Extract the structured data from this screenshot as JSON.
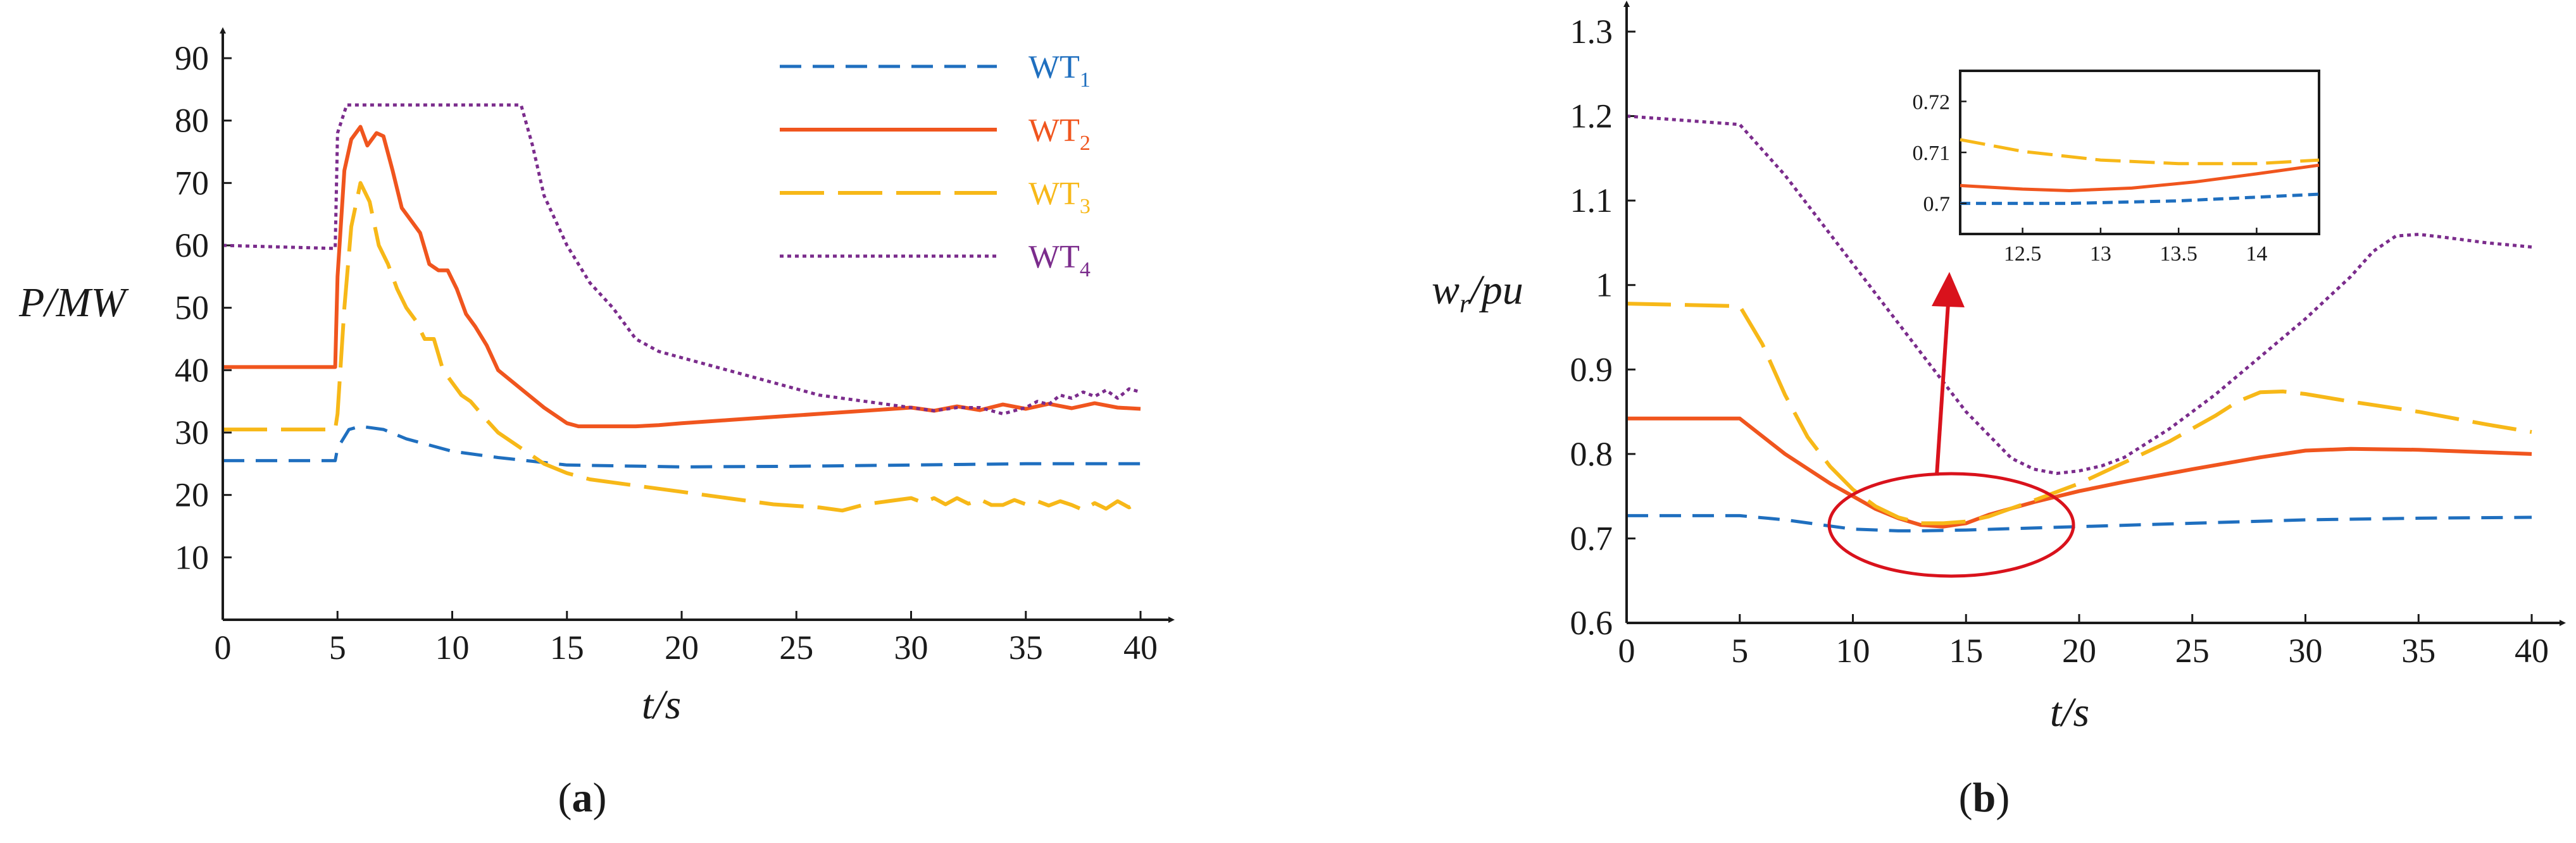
{
  "colors": {
    "wt1": "#1f6fbf",
    "wt2": "#f0551e",
    "wt3": "#f7b818",
    "wt4": "#7b2c8c",
    "annotation": "#d9121c",
    "axis": "#1a1a1a"
  },
  "chart_data": [
    {
      "type": "line",
      "panel": "a",
      "caption_letter": "a",
      "xlabel": "t/s",
      "ylabel": "P/MW",
      "xlim": [
        0,
        40
      ],
      "ylim": [
        0,
        90
      ],
      "xticks": [
        "0",
        "5",
        "10",
        "15",
        "20",
        "25",
        "30",
        "35",
        "40"
      ],
      "yticks": [
        "10",
        "20",
        "30",
        "40",
        "50",
        "60",
        "70",
        "80",
        "90"
      ],
      "legend": {
        "position": "top-right",
        "entries": [
          {
            "base": "WT",
            "sub": "1"
          },
          {
            "base": "WT",
            "sub": "2"
          },
          {
            "base": "WT",
            "sub": "3"
          },
          {
            "base": "WT",
            "sub": "4"
          }
        ]
      },
      "series": [
        {
          "name": "WT1",
          "x": [
            0,
            4.9,
            5,
            5.5,
            6,
            7,
            8,
            10,
            12,
            15,
            20,
            25,
            30,
            35,
            40
          ],
          "values": [
            25.5,
            25.5,
            27.5,
            30.5,
            31,
            30.5,
            29,
            27,
            26,
            24.8,
            24.5,
            24.6,
            24.8,
            25,
            25
          ]
        },
        {
          "name": "WT2",
          "x": [
            0,
            4.9,
            5,
            5.3,
            5.6,
            6,
            6.3,
            6.7,
            7,
            7.4,
            7.8,
            8.2,
            8.6,
            9,
            9.4,
            9.8,
            10.2,
            10.6,
            11,
            11.5,
            12,
            13,
            14,
            15,
            15.5,
            16,
            17,
            18,
            19,
            20,
            22,
            24,
            26,
            28,
            30,
            31,
            32,
            33,
            34,
            35,
            36,
            37,
            38,
            39,
            40
          ],
          "values": [
            40.5,
            40.5,
            55,
            72,
            77,
            79,
            76,
            78,
            77.5,
            72,
            66,
            64,
            62,
            57,
            56,
            56,
            53,
            49,
            47,
            44,
            40,
            37,
            34,
            31.5,
            31,
            31,
            31,
            31,
            31.2,
            31.5,
            32,
            32.5,
            33,
            33.5,
            34,
            33.5,
            34.2,
            33.6,
            34.5,
            33.8,
            34.6,
            33.9,
            34.7,
            34,
            33.8
          ]
        },
        {
          "name": "WT3",
          "x": [
            0,
            4.9,
            5,
            5.3,
            5.6,
            6,
            6.4,
            6.8,
            7.2,
            7.6,
            8,
            8.4,
            8.8,
            9.2,
            9.6,
            10,
            10.4,
            10.8,
            11.5,
            12,
            13,
            14,
            15,
            16,
            18,
            20,
            22,
            24,
            26,
            27,
            28,
            29,
            30,
            30.5,
            31,
            31.5,
            32,
            32.5,
            33,
            33.5,
            34,
            34.5,
            35,
            35.5,
            36,
            36.5,
            37,
            37.5,
            38,
            38.5,
            39,
            39.5,
            40
          ],
          "values": [
            30.5,
            30.5,
            33,
            50,
            63,
            70,
            67,
            60,
            57,
            53,
            50,
            48,
            45,
            45,
            40,
            38,
            36,
            35,
            32,
            30,
            27.5,
            25,
            23.5,
            22.5,
            21.5,
            20.5,
            19.5,
            18.5,
            18,
            17.5,
            18.5,
            19,
            19.5,
            18.8,
            19.5,
            18.5,
            19.5,
            18.6,
            19.3,
            18.4,
            18.4,
            19.2,
            18.5,
            19,
            18.3,
            19,
            18.4,
            17.6,
            18.7,
            17.8,
            19,
            18,
            19
          ]
        },
        {
          "name": "WT4",
          "x": [
            0,
            4.9,
            5,
            5.4,
            13,
            13.5,
            14,
            15,
            16,
            17,
            18,
            19,
            20,
            22,
            24,
            26,
            28,
            30,
            31,
            32,
            33,
            34,
            35,
            35.5,
            36,
            36.5,
            37,
            37.5,
            38,
            38.5,
            39,
            39.5,
            40
          ],
          "values": [
            60,
            59.5,
            78,
            82.5,
            82.5,
            76,
            68,
            60,
            54,
            50,
            45,
            43,
            42,
            40,
            38,
            36,
            35,
            34,
            33.5,
            34,
            34,
            33,
            34,
            35,
            34.5,
            36,
            35.5,
            36.5,
            35.8,
            36.8,
            35.5,
            37,
            36.5
          ]
        }
      ]
    },
    {
      "type": "line",
      "panel": "b",
      "caption_letter": "b",
      "xlabel": "t/s",
      "ylabel": "w",
      "ylabel_sub": "r",
      "ylabel_tail": "/pu",
      "xlim": [
        0,
        40
      ],
      "ylim": [
        0.6,
        1.3
      ],
      "xticks": [
        "0",
        "5",
        "10",
        "15",
        "20",
        "25",
        "30",
        "35",
        "40"
      ],
      "yticks": [
        "0.6",
        "0.7",
        "0.8",
        "0.9",
        "1",
        "1.1",
        "1.2",
        "1.3"
      ],
      "series": [
        {
          "name": "WT1",
          "x": [
            0,
            5,
            7,
            10,
            12,
            13,
            15,
            20,
            25,
            30,
            35,
            40
          ],
          "values": [
            0.727,
            0.727,
            0.722,
            0.711,
            0.709,
            0.709,
            0.71,
            0.714,
            0.718,
            0.722,
            0.724,
            0.725
          ]
        },
        {
          "name": "WT2",
          "x": [
            0,
            5,
            7,
            9,
            11,
            12,
            13,
            14,
            15,
            16,
            18,
            20,
            22,
            25,
            28,
            30,
            32,
            35,
            38,
            40
          ],
          "values": [
            0.842,
            0.842,
            0.8,
            0.765,
            0.735,
            0.724,
            0.716,
            0.714,
            0.718,
            0.728,
            0.743,
            0.756,
            0.767,
            0.782,
            0.796,
            0.804,
            0.806,
            0.805,
            0.802,
            0.8
          ]
        },
        {
          "name": "WT3",
          "x": [
            0,
            5,
            6,
            7,
            8,
            9,
            10,
            11,
            12,
            13,
            14,
            15,
            16,
            18,
            20,
            22,
            24,
            26,
            27,
            28,
            29,
            30,
            32,
            35,
            38,
            40
          ],
          "values": [
            0.978,
            0.975,
            0.93,
            0.87,
            0.82,
            0.785,
            0.758,
            0.738,
            0.725,
            0.718,
            0.718,
            0.72,
            0.726,
            0.745,
            0.765,
            0.79,
            0.815,
            0.845,
            0.862,
            0.873,
            0.874,
            0.871,
            0.862,
            0.85,
            0.835,
            0.826
          ]
        },
        {
          "name": "WT4",
          "x": [
            0,
            5,
            7,
            9,
            11,
            13,
            15,
            17,
            18,
            19,
            20,
            21,
            22,
            24,
            26,
            28,
            30,
            32,
            33,
            34,
            35,
            36,
            38,
            40
          ],
          "values": [
            1.2,
            1.19,
            1.13,
            1.06,
            0.99,
            0.92,
            0.85,
            0.795,
            0.782,
            0.777,
            0.78,
            0.786,
            0.796,
            0.83,
            0.87,
            0.915,
            0.96,
            1.01,
            1.04,
            1.058,
            1.06,
            1.057,
            1.05,
            1.045
          ]
        }
      ],
      "inset": {
        "xlim": [
          12.1,
          14.4
        ],
        "ylim": [
          0.694,
          0.726
        ],
        "xticks": [
          "12.5",
          "13",
          "13.5",
          "14"
        ],
        "yticks": [
          "0.7",
          "0.71",
          "0.72"
        ],
        "series": [
          {
            "name": "WT1",
            "x": [
              12.1,
              12.8,
              13.5,
              14.4
            ],
            "values": [
              0.7,
              0.7,
              0.7005,
              0.7018
            ]
          },
          {
            "name": "WT2",
            "x": [
              12.1,
              12.5,
              12.8,
              13.2,
              13.6,
              14,
              14.4
            ],
            "values": [
              0.7035,
              0.7028,
              0.7025,
              0.703,
              0.7042,
              0.7058,
              0.7075
            ]
          },
          {
            "name": "WT3",
            "x": [
              12.1,
              12.5,
              13,
              13.5,
              14,
              14.4
            ],
            "values": [
              0.7125,
              0.7102,
              0.7085,
              0.7078,
              0.7078,
              0.7085
            ]
          }
        ]
      }
    }
  ]
}
